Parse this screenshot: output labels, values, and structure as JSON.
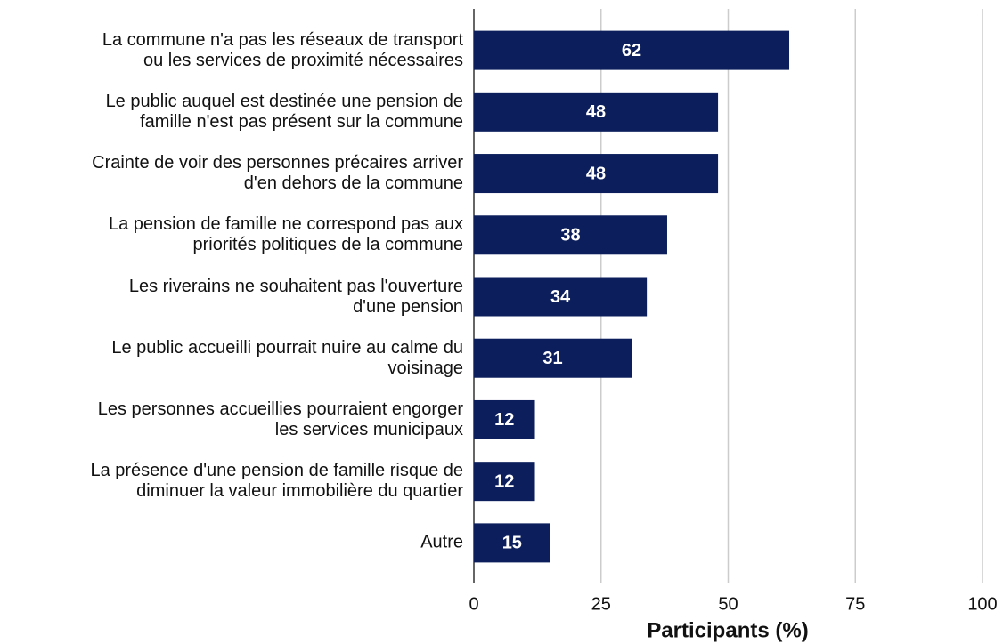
{
  "chart_data": {
    "type": "bar",
    "orientation": "horizontal",
    "categories": [
      "La commune n'a pas les réseaux de transport\nou les services de proximité nécessaires",
      "Le public auquel est destinée une pension de\nfamille n'est pas présent sur la commune",
      "Crainte de voir des personnes précaires arriver\nd'en dehors de la commune",
      "La pension de famille ne correspond pas aux\npriorités politiques de la commune",
      "Les riverains ne souhaitent pas l'ouverture\nd'une pension",
      "Le public accueilli pourrait nuire au calme du\nvoisinage",
      "Les personnes accueillies pourraient engorger\nles services municipaux",
      "La présence d'une pension de famille risque de\ndiminuer la valeur immobilière du quartier",
      "Autre"
    ],
    "values": [
      62,
      48,
      48,
      38,
      34,
      31,
      12,
      12,
      15
    ],
    "color": "#0c1f5c",
    "xlabel": "Participants (%)",
    "xlim": [
      0,
      100
    ],
    "xticks": [
      0,
      25,
      50,
      75,
      100
    ],
    "grid": true
  }
}
